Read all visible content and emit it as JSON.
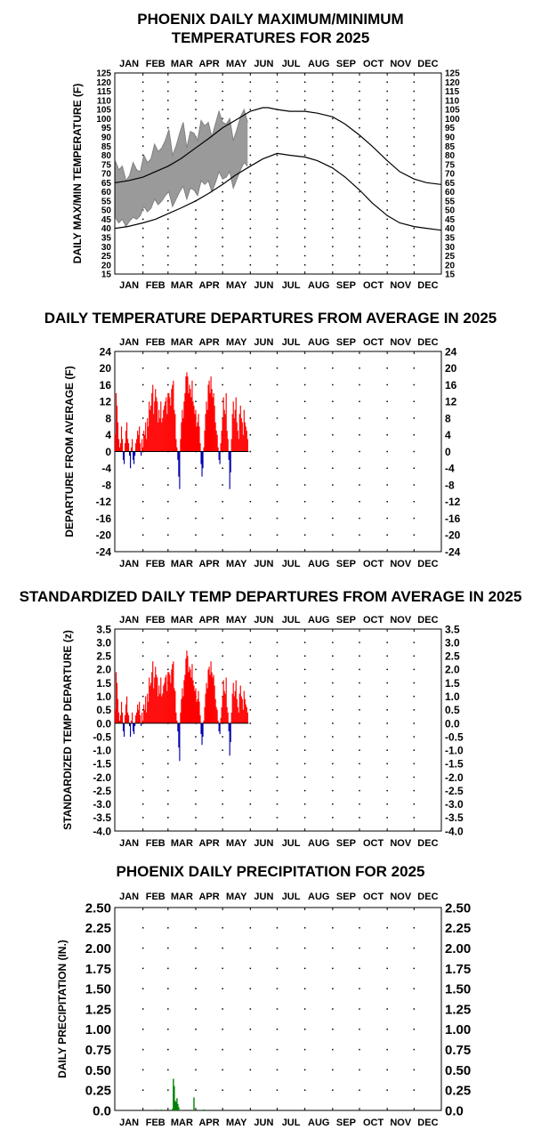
{
  "chart_data": [
    {
      "type": "line",
      "title_line1": "PHOENIX DAILY MAXIMUM/MINIMUM",
      "title_line2": "TEMPERATURES FOR 2025",
      "ylabel": "DAILY MAX/MIN TEMPERATURE (F)",
      "months": [
        "JAN",
        "FEB",
        "MAR",
        "APR",
        "MAY",
        "JUN",
        "JUL",
        "AUG",
        "SEP",
        "OCT",
        "NOV",
        "DEC"
      ],
      "ylim": [
        15,
        125
      ],
      "yticks": [
        15,
        20,
        25,
        30,
        35,
        40,
        45,
        50,
        55,
        60,
        65,
        70,
        75,
        80,
        85,
        90,
        95,
        100,
        105,
        110,
        115,
        120,
        125
      ],
      "grid": "dotted",
      "series": [
        {
          "key": "normal_high",
          "color": "#000000",
          "x": [
            1,
            15,
            32,
            46,
            60,
            74,
            91,
            105,
            121,
            135,
            152,
            166,
            172,
            182,
            196,
            213,
            227,
            244,
            258,
            274,
            288,
            305,
            319,
            335,
            349,
            365
          ],
          "y": [
            65,
            66,
            68,
            71,
            74,
            78,
            84,
            89,
            95,
            99,
            104,
            106,
            106,
            105,
            104,
            104,
            103,
            101,
            97,
            91,
            85,
            77,
            71,
            67,
            65,
            64
          ]
        },
        {
          "key": "normal_low",
          "color": "#000000",
          "x": [
            1,
            15,
            32,
            46,
            60,
            74,
            91,
            105,
            121,
            135,
            152,
            166,
            182,
            196,
            213,
            227,
            244,
            258,
            274,
            288,
            305,
            319,
            335,
            349,
            365
          ],
          "y": [
            40,
            41,
            43,
            45,
            48,
            51,
            55,
            59,
            64,
            69,
            74,
            78,
            81,
            80,
            79,
            77,
            73,
            68,
            61,
            54,
            47,
            43,
            41,
            40,
            39
          ]
        },
        {
          "key": "daily_max",
          "color": "#808080",
          "x": [
            1,
            5,
            9,
            13,
            17,
            21,
            25,
            29,
            33,
            37,
            41,
            45,
            49,
            53,
            57,
            61,
            65,
            69,
            73,
            77,
            81,
            85,
            89,
            93,
            97,
            101,
            105,
            109,
            113,
            117,
            121,
            125,
            129,
            133,
            137,
            141,
            145,
            149
          ],
          "y": [
            77,
            72,
            74,
            66,
            69,
            76,
            72,
            71,
            80,
            76,
            78,
            86,
            82,
            84,
            88,
            94,
            80,
            85,
            92,
            98,
            84,
            93,
            92,
            88,
            99,
            96,
            98,
            90,
            97,
            104,
            98,
            97,
            100,
            88,
            94,
            101,
            105,
            98
          ]
        },
        {
          "key": "daily_min",
          "color": "#808080",
          "x": [
            1,
            5,
            9,
            13,
            17,
            21,
            25,
            29,
            33,
            37,
            41,
            45,
            49,
            53,
            57,
            61,
            65,
            69,
            73,
            77,
            81,
            85,
            89,
            93,
            97,
            101,
            105,
            109,
            113,
            117,
            121,
            125,
            129,
            133,
            137,
            141,
            145,
            149
          ],
          "y": [
            46,
            43,
            45,
            41,
            44,
            46,
            45,
            47,
            52,
            49,
            51,
            56,
            53,
            55,
            58,
            60,
            52,
            56,
            60,
            63,
            56,
            62,
            61,
            58,
            66,
            64,
            66,
            60,
            65,
            71,
            67,
            68,
            71,
            62,
            67,
            72,
            76,
            74
          ]
        }
      ]
    },
    {
      "type": "bar",
      "title": "DAILY TEMPERATURE DEPARTURES FROM AVERAGE IN 2025",
      "ylabel": "DEPARTURE FROM AVERAGE (F)",
      "months": [
        "JAN",
        "FEB",
        "MAR",
        "APR",
        "MAY",
        "JUN",
        "JUL",
        "AUG",
        "SEP",
        "OCT",
        "NOV",
        "DEC"
      ],
      "ylim": [
        -24,
        24
      ],
      "yticks": [
        24,
        20,
        16,
        12,
        8,
        4,
        0,
        -4,
        -8,
        -12,
        -16,
        -20,
        -24
      ],
      "positive_color": "#ff0000",
      "negative_color": "#0000b0",
      "values": [
        4,
        14,
        11,
        7,
        3,
        1,
        2,
        6,
        3,
        -2,
        -3,
        2,
        5,
        7,
        3,
        2,
        -1,
        -4,
        1,
        3,
        -2,
        -3,
        -1,
        2,
        3,
        5,
        4,
        6,
        2,
        -1,
        3,
        1,
        5,
        4,
        7,
        3,
        8,
        6,
        12,
        10,
        11,
        14,
        16,
        9,
        12,
        15,
        13,
        12,
        7,
        10,
        8,
        12,
        7,
        8,
        10,
        11,
        12,
        13,
        9,
        14,
        14,
        13,
        11,
        15,
        16,
        17,
        10,
        9,
        3,
        1,
        -2,
        -6,
        -9,
        3,
        7,
        10,
        8,
        12,
        14,
        18,
        19,
        18,
        14,
        16,
        15,
        13,
        17,
        12,
        11,
        9,
        10,
        6,
        7,
        9,
        6,
        2,
        -3,
        -6,
        -4,
        1,
        5,
        9,
        12,
        10,
        16,
        17,
        14,
        18,
        15,
        13,
        14,
        11,
        7,
        5,
        4,
        1,
        -2,
        -3,
        2,
        5,
        8,
        13,
        10,
        9,
        14,
        5,
        3,
        -2,
        -9,
        -5,
        3,
        9,
        12,
        8,
        10,
        13,
        7,
        5,
        3,
        9,
        11,
        8,
        7,
        4,
        10,
        7,
        6,
        5,
        3
      ]
    },
    {
      "type": "bar",
      "title": "STANDARDIZED DAILY TEMP DEPARTURES FROM AVERAGE IN 2025",
      "ylabel": "STANDARDIZED TEMP DEPARTURE (z)",
      "months": [
        "JAN",
        "FEB",
        "MAR",
        "APR",
        "MAY",
        "JUN",
        "JUL",
        "AUG",
        "SEP",
        "OCT",
        "NOV",
        "DEC"
      ],
      "ylim": [
        -4.0,
        3.5
      ],
      "yticks": [
        "3.5",
        "3.0",
        "2.5",
        "2.0",
        "1.5",
        "1.0",
        "0.5",
        "0.0",
        "-0.5",
        "-1.0",
        "-1.5",
        "-2.0",
        "-2.5",
        "-3.0",
        "-3.5",
        "-4.0"
      ],
      "positive_color": "#ff0000",
      "negative_color": "#0000b0",
      "values": [
        0.5,
        1.9,
        1.5,
        0.9,
        0.4,
        0.1,
        0.3,
        0.8,
        0.4,
        -0.3,
        -0.5,
        0.3,
        0.7,
        1.0,
        0.4,
        0.3,
        -0.1,
        -0.5,
        0.1,
        0.4,
        -0.3,
        -0.4,
        -0.1,
        0.3,
        0.4,
        0.7,
        0.5,
        0.8,
        0.3,
        -0.1,
        0.4,
        0.1,
        0.7,
        0.5,
        1.0,
        0.4,
        1.1,
        0.8,
        1.7,
        1.4,
        1.5,
        1.9,
        2.3,
        1.3,
        1.7,
        2.1,
        1.8,
        1.7,
        1.0,
        1.4,
        1.1,
        1.7,
        1.0,
        1.1,
        1.4,
        1.5,
        1.7,
        1.8,
        1.2,
        1.9,
        1.9,
        1.8,
        1.5,
        2.0,
        2.2,
        2.3,
        1.3,
        1.2,
        0.4,
        0.1,
        -0.3,
        -0.9,
        -1.4,
        0.4,
        0.9,
        1.3,
        1.0,
        1.6,
        1.8,
        2.4,
        2.7,
        2.5,
        1.9,
        2.1,
        2.0,
        1.7,
        2.2,
        1.6,
        1.4,
        1.2,
        1.3,
        0.8,
        0.9,
        1.2,
        0.8,
        0.3,
        -0.4,
        -0.8,
        -0.5,
        0.1,
        0.6,
        1.1,
        1.5,
        1.3,
        2.0,
        2.1,
        1.8,
        2.3,
        1.9,
        1.7,
        1.8,
        1.4,
        0.9,
        0.6,
        0.5,
        0.1,
        -0.3,
        -0.4,
        0.2,
        0.6,
        1.0,
        1.6,
        1.2,
        1.1,
        1.7,
        0.6,
        0.4,
        -0.3,
        -1.2,
        -0.7,
        0.4,
        1.1,
        1.5,
        1.0,
        1.2,
        1.6,
        0.9,
        0.6,
        0.4,
        1.1,
        1.4,
        1.0,
        0.9,
        0.5,
        1.2,
        0.9,
        0.7,
        0.6,
        0.4
      ]
    },
    {
      "type": "bar",
      "title": "PHOENIX DAILY PRECIPITATION FOR 2025",
      "ylabel": "DAILY PRECIPITATION (IN.)",
      "months": [
        "JAN",
        "FEB",
        "MAR",
        "APR",
        "MAY",
        "JUN",
        "JUL",
        "AUG",
        "SEP",
        "OCT",
        "NOV",
        "DEC"
      ],
      "ylim": [
        0.0,
        2.5
      ],
      "yticks": [
        "2.50",
        "2.25",
        "2.00",
        "1.75",
        "1.50",
        "1.25",
        "1.00",
        "0.75",
        "0.50",
        "0.25",
        "0.0"
      ],
      "bar_color": "#008000",
      "days": [
        46,
        52,
        65,
        66,
        67,
        68,
        69,
        70,
        71,
        72,
        89,
        100,
        101
      ],
      "values": [
        0.01,
        0.01,
        0.02,
        0.39,
        0.3,
        0.12,
        0.1,
        0.15,
        0.08,
        0.04,
        0.16,
        0.01,
        0.01
      ]
    }
  ]
}
